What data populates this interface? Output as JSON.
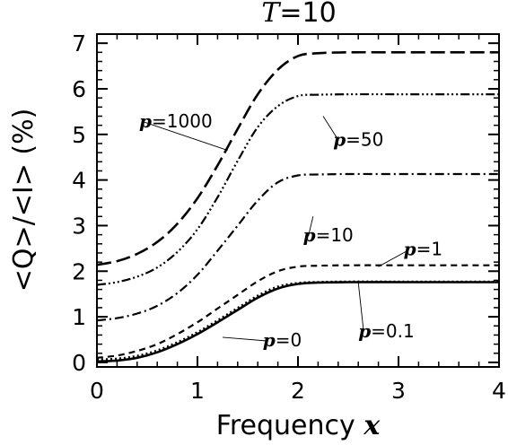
{
  "chart_data": {
    "type": "line",
    "title": "T=10",
    "title_var": "T",
    "title_value": "=10",
    "xlabel": "Frequency",
    "xlabel_var": "x",
    "ylabel": "<Q>/<I> (%)",
    "xlim": [
      0,
      4
    ],
    "ylim": [
      -0.1,
      7.2
    ],
    "xticks": [
      "0",
      "1",
      "2",
      "3",
      "4"
    ],
    "yticks": [
      "0",
      "1",
      "2",
      "3",
      "4",
      "5",
      "6",
      "7"
    ],
    "grid": false,
    "x": [
      0,
      0.2,
      0.4,
      0.6,
      0.8,
      1.0,
      1.2,
      1.4,
      1.6,
      1.8,
      2.0,
      2.2,
      2.5,
      3.0,
      3.5,
      4.0
    ],
    "series": [
      {
        "name": "p=0",
        "dash": "solid",
        "label": {
          "p": "p",
          "value": "=0",
          "at": [
            1.65,
            0.35
          ],
          "pointer": [
            1.25,
            0.55
          ]
        },
        "values": [
          0.02,
          0.04,
          0.1,
          0.22,
          0.4,
          0.62,
          0.88,
          1.15,
          1.42,
          1.62,
          1.72,
          1.75,
          1.76,
          1.76,
          1.76,
          1.76
        ]
      },
      {
        "name": "p=0.1",
        "dash": "dotted",
        "label": {
          "p": "p",
          "value": "=0.1",
          "at": [
            2.6,
            0.55
          ],
          "pointer": [
            2.6,
            1.75
          ]
        },
        "values": [
          0.06,
          0.08,
          0.14,
          0.26,
          0.44,
          0.66,
          0.92,
          1.19,
          1.46,
          1.66,
          1.74,
          1.76,
          1.77,
          1.77,
          1.77,
          1.77
        ]
      },
      {
        "name": "p=1",
        "dash": "short-dash",
        "label": {
          "p": "p",
          "value": "=1",
          "at": [
            3.05,
            2.35
          ],
          "pointer": [
            2.8,
            2.1
          ]
        },
        "values": [
          0.1,
          0.15,
          0.25,
          0.4,
          0.62,
          0.88,
          1.18,
          1.48,
          1.78,
          2.0,
          2.1,
          2.12,
          2.13,
          2.13,
          2.13,
          2.13
        ]
      },
      {
        "name": "p=10",
        "dash": "dash-dot",
        "label": {
          "p": "p",
          "value": "=10",
          "at": [
            2.05,
            2.65
          ],
          "pointer": [
            2.15,
            3.2
          ]
        },
        "values": [
          0.92,
          0.97,
          1.07,
          1.24,
          1.52,
          1.92,
          2.45,
          3.0,
          3.55,
          3.95,
          4.1,
          4.12,
          4.13,
          4.13,
          4.13,
          4.13
        ]
      },
      {
        "name": "p=50",
        "dash": "dash-dot-dot",
        "label": {
          "p": "p",
          "value": "=50",
          "at": [
            2.35,
            4.75
          ],
          "pointer": [
            2.25,
            5.4
          ]
        },
        "values": [
          1.7,
          1.76,
          1.88,
          2.08,
          2.42,
          2.92,
          3.62,
          4.42,
          5.16,
          5.62,
          5.84,
          5.87,
          5.88,
          5.88,
          5.88,
          5.88
        ]
      },
      {
        "name": "p=1000",
        "dash": "long-dash",
        "label": {
          "p": "p",
          "value": "=1000",
          "at": [
            0.42,
            5.15
          ],
          "pointer": [
            1.3,
            4.65
          ]
        },
        "values": [
          2.14,
          2.22,
          2.38,
          2.64,
          3.04,
          3.6,
          4.32,
          5.12,
          5.88,
          6.42,
          6.72,
          6.78,
          6.8,
          6.8,
          6.8,
          6.8
        ]
      }
    ]
  }
}
